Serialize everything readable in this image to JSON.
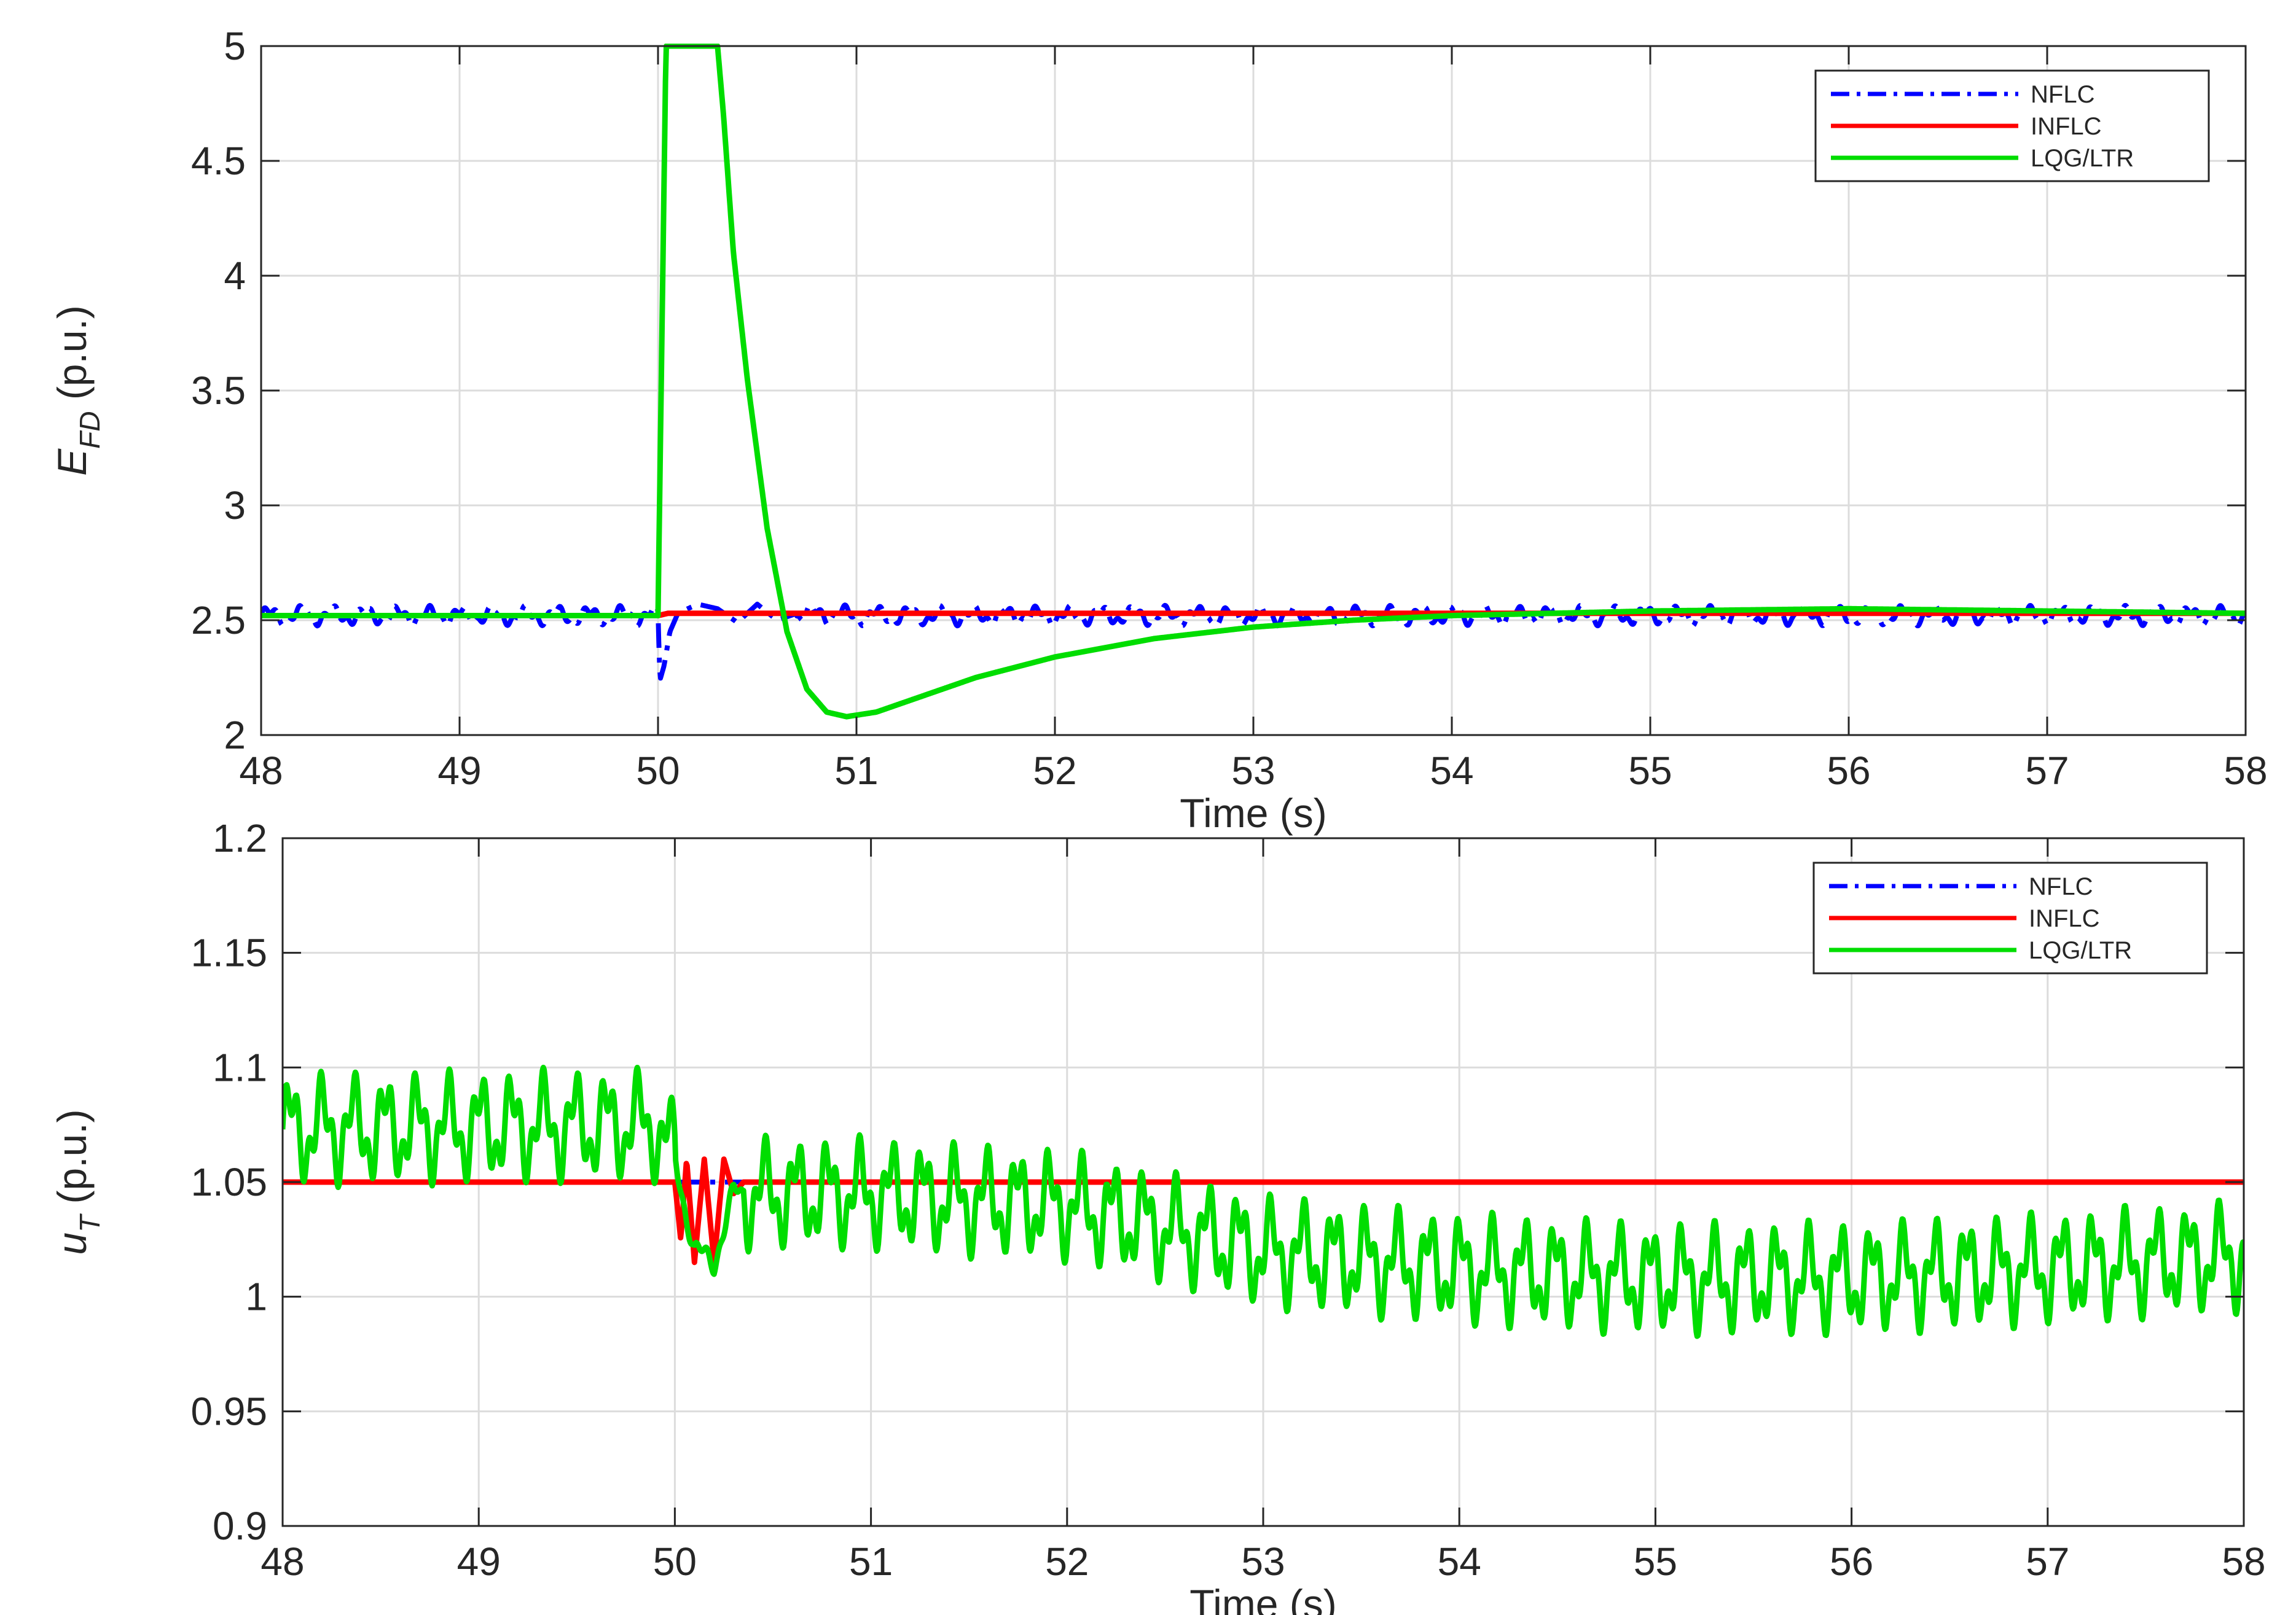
{
  "chart_data": [
    {
      "type": "line",
      "ylabel_main": "E",
      "ylabel_sub": "FD",
      "ylabel_unit": "(p.u.)",
      "xlabel": "Time (s)",
      "xlim": [
        48,
        58
      ],
      "ylim": [
        2,
        5
      ],
      "xticks": [
        48,
        49,
        50,
        51,
        52,
        53,
        54,
        55,
        56,
        57,
        58
      ],
      "yticks": [
        2,
        2.5,
        3,
        3.5,
        4,
        4.5,
        5
      ],
      "ytick_labels": [
        "2",
        "2.5",
        "3",
        "3.5",
        "4",
        "4.5",
        "5"
      ],
      "grid": true,
      "legend_position": "top-right",
      "series": [
        {
          "name": "NFLC",
          "color": "#0000ff",
          "style": "dashdot",
          "x": [
            48,
            50.0,
            50.01,
            50.03,
            50.06,
            50.1,
            50.2,
            50.3,
            50.4,
            50.5,
            50.6,
            50.7,
            51,
            52,
            53,
            54,
            55,
            56,
            57,
            58
          ],
          "y": [
            2.52,
            2.52,
            2.24,
            2.3,
            2.45,
            2.53,
            2.57,
            2.55,
            2.49,
            2.57,
            2.5,
            2.53,
            2.52,
            2.52,
            2.52,
            2.52,
            2.52,
            2.52,
            2.52,
            2.52
          ],
          "osc_amp": 0.028,
          "osc_freq": 6.2
        },
        {
          "name": "INFLC",
          "color": "#ff0000",
          "style": "solid",
          "x": [
            48,
            50.0,
            50.05,
            58
          ],
          "y": [
            2.52,
            2.52,
            2.53,
            2.53
          ]
        },
        {
          "name": "LQG/LTR",
          "color": "#00dd00",
          "style": "solid",
          "x": [
            48,
            50.0,
            50.04,
            50.3,
            50.33,
            50.38,
            50.45,
            50.55,
            50.65,
            50.75,
            50.85,
            50.95,
            51.1,
            51.3,
            51.6,
            52.0,
            52.5,
            53.0,
            53.5,
            54.0,
            55.0,
            56.0,
            57.0,
            58.0
          ],
          "y": [
            2.52,
            2.52,
            5.0,
            5.0,
            4.7,
            4.1,
            3.55,
            2.9,
            2.45,
            2.2,
            2.1,
            2.08,
            2.1,
            2.16,
            2.25,
            2.34,
            2.42,
            2.47,
            2.5,
            2.52,
            2.54,
            2.55,
            2.54,
            2.53
          ]
        }
      ]
    },
    {
      "type": "line",
      "ylabel_main": "u",
      "ylabel_sub": "T",
      "ylabel_unit": "(p.u.)",
      "xlabel": "Time (s)",
      "xlim": [
        48,
        58
      ],
      "ylim": [
        0.9,
        1.2
      ],
      "xticks": [
        48,
        49,
        50,
        51,
        52,
        53,
        54,
        55,
        56,
        57,
        58
      ],
      "yticks": [
        0.9,
        0.95,
        1,
        1.05,
        1.1,
        1.15,
        1.2
      ],
      "ytick_labels": [
        "0.9",
        "0.95",
        "1",
        "1.05",
        "1.1",
        "1.15",
        "1.2"
      ],
      "grid": true,
      "legend_position": "top-right",
      "series": [
        {
          "name": "NFLC",
          "color": "#0000ff",
          "style": "dashdot",
          "x": [
            48,
            58
          ],
          "y": [
            1.05,
            1.05
          ]
        },
        {
          "name": "INFLC",
          "color": "#ff0000",
          "style": "solid",
          "x": [
            48,
            50.0,
            50.03,
            50.06,
            50.1,
            50.15,
            50.2,
            50.25,
            50.3,
            50.35,
            58
          ],
          "y": [
            1.05,
            1.05,
            1.025,
            1.06,
            1.015,
            1.06,
            1.015,
            1.06,
            1.045,
            1.05,
            1.05
          ],
          "osc_amp": 0.0,
          "osc_freq": 0
        },
        {
          "name": "LQG/LTR",
          "color": "#00dd00",
          "style": "solid",
          "x": [
            48,
            49.9,
            50.0,
            50.05,
            50.1,
            50.2,
            50.3,
            50.5,
            51.0,
            51.5,
            52.0,
            52.5,
            53.0,
            54.0,
            55.0,
            56.0,
            57.0,
            58.0
          ],
          "y": [
            1.073,
            1.075,
            1.06,
            1.04,
            1.02,
            1.015,
            1.045,
            1.045,
            1.045,
            1.042,
            1.04,
            1.03,
            1.02,
            1.012,
            1.008,
            1.008,
            1.012,
            1.018
          ],
          "osc_amp": 0.016,
          "osc_freq": 6.2
        }
      ]
    }
  ]
}
